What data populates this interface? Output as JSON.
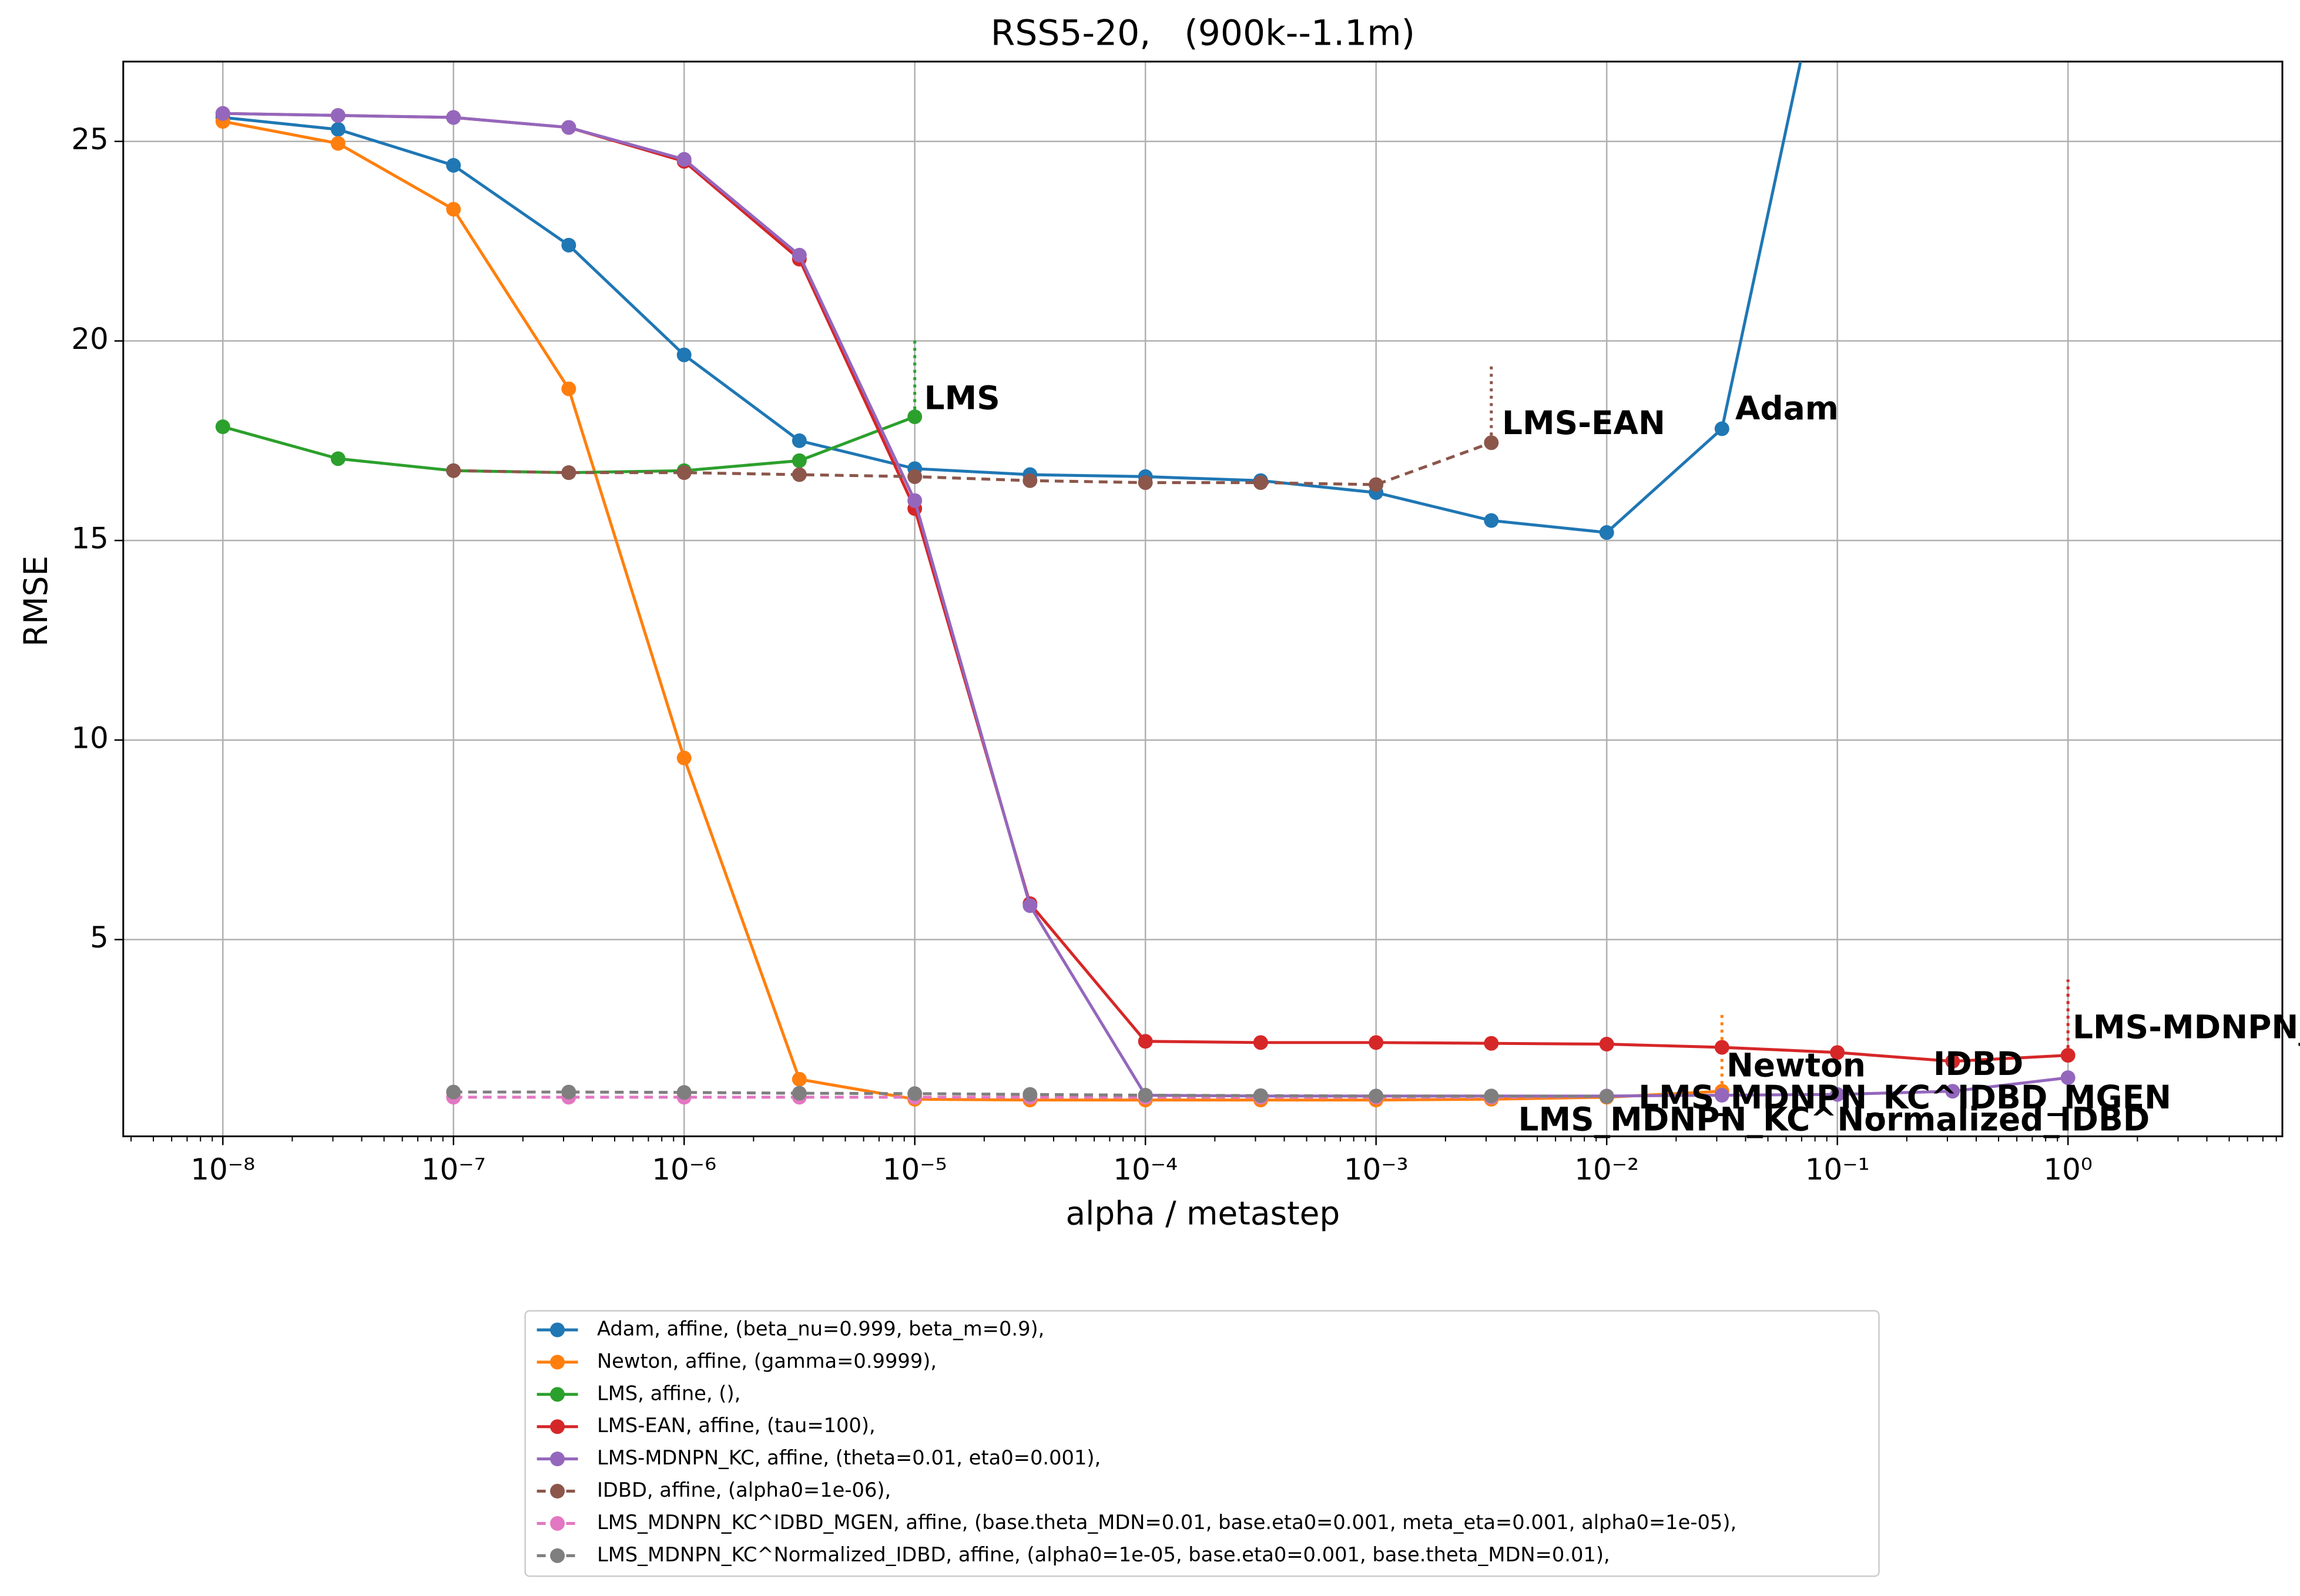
{
  "chart_data": {
    "type": "line",
    "title": "RSS5-20,   (900k--1.1m)",
    "xlabel": "alpha / metastep",
    "ylabel": "RMSE",
    "xscale": "log",
    "grid": true,
    "xlim": [
      3.7e-09,
      8.5
    ],
    "ylim": [
      0.07,
      27
    ],
    "xticks": [
      {
        "value": 1e-08,
        "label": "10⁻⁸"
      },
      {
        "value": 1e-07,
        "label": "10⁻⁷"
      },
      {
        "value": 1e-06,
        "label": "10⁻⁶"
      },
      {
        "value": 1e-05,
        "label": "10⁻⁵"
      },
      {
        "value": 0.0001,
        "label": "10⁻⁴"
      },
      {
        "value": 0.001,
        "label": "10⁻³"
      },
      {
        "value": 0.01,
        "label": "10⁻²"
      },
      {
        "value": 0.1,
        "label": "10⁻¹"
      },
      {
        "value": 1,
        "label": "10⁰"
      }
    ],
    "yticks": [
      5,
      10,
      15,
      20,
      25
    ],
    "x": [
      1e-08,
      3.16e-08,
      1e-07,
      3.16e-07,
      1e-06,
      3.16e-06,
      1e-05,
      3.16e-05,
      0.0001,
      0.000316,
      0.001,
      0.00316,
      0.01,
      0.0316,
      0.1,
      0.316,
      1
    ],
    "series": [
      {
        "name": "Adam, affine, (beta_nu=0.999, beta_m=0.9),",
        "label": "Adam",
        "color": "#1f77b4",
        "dashed": false,
        "values": [
          25.6,
          25.3,
          24.4,
          22.4,
          19.65,
          17.5,
          16.8,
          16.65,
          16.6,
          16.5,
          16.2,
          15.5,
          15.2,
          17.8,
          31.3,
          null,
          null
        ]
      },
      {
        "name": "Newton, affine, (gamma=0.9999),",
        "label": "Newton",
        "color": "#ff7f0e",
        "dashed": false,
        "whisker": 3.2,
        "values": [
          25.5,
          24.95,
          23.3,
          18.8,
          9.55,
          1.5,
          1.0,
          0.98,
          0.98,
          0.98,
          0.98,
          1.0,
          1.05,
          1.2,
          null,
          null,
          null
        ]
      },
      {
        "name": "LMS, affine, (),",
        "label": "LMS",
        "color": "#2ca02c",
        "dashed": false,
        "whisker": 20.1,
        "values": [
          17.85,
          17.05,
          16.75,
          16.7,
          16.75,
          17.0,
          18.1,
          null,
          null,
          null,
          null,
          null,
          null,
          null,
          null,
          null,
          null
        ]
      },
      {
        "name": "LMS-EAN, affine, (tau=100),",
        "label": "LMS-EAN",
        "color": "#d62728",
        "dashed": false,
        "whisker": 4.0,
        "values": [
          25.7,
          25.65,
          25.6,
          25.35,
          24.5,
          22.05,
          15.8,
          5.9,
          2.45,
          2.42,
          2.42,
          2.4,
          2.38,
          2.3,
          2.17,
          1.95,
          2.1
        ]
      },
      {
        "name": "LMS-MDNPN_KC, affine, (theta=0.01, eta0=0.001),",
        "label": "LMS-MDNPN_KC",
        "color": "#9467bd",
        "dashed": false,
        "values": [
          25.7,
          25.65,
          25.6,
          25.35,
          24.55,
          22.15,
          16.0,
          5.85,
          1.1,
          1.08,
          1.08,
          1.08,
          1.08,
          1.1,
          1.12,
          1.2,
          1.54
        ]
      },
      {
        "name": "IDBD, affine, (alpha0=1e-06),",
        "label": "IDBD",
        "color": "#8c564b",
        "dashed": true,
        "whisker": 19.45,
        "values": [
          null,
          null,
          16.75,
          16.7,
          16.7,
          16.65,
          16.6,
          16.5,
          16.45,
          16.45,
          16.4,
          17.45,
          null,
          null,
          null,
          null,
          null
        ]
      },
      {
        "name": "LMS_MDNPN_KC^IDBD_MGEN, affine, (base.theta_MDN=0.01, base.eta0=0.001, meta_eta=0.001, alpha0=1e-05),",
        "label": "LMS_MDNPN_KC^IDBD_MGEN",
        "color": "#e377c2",
        "dashed": true,
        "values": [
          null,
          null,
          1.05,
          1.05,
          1.05,
          1.05,
          1.05,
          1.05,
          1.05,
          1.05,
          1.05,
          1.05,
          1.07,
          null,
          null,
          null,
          null
        ]
      },
      {
        "name": "LMS_MDNPN_KC^Normalized_IDBD, affine, (alpha0=1e-05, base.eta0=0.001, base.theta_MDN=0.01),",
        "label": "LMS_MDNPN_KC^Normalized_IDBD",
        "color": "#7f7f7f",
        "dashed": true,
        "values": [
          null,
          null,
          1.18,
          1.18,
          1.17,
          1.15,
          1.14,
          1.12,
          1.1,
          1.09,
          1.08,
          1.08,
          1.07,
          null,
          null,
          null,
          null
        ]
      }
    ]
  }
}
